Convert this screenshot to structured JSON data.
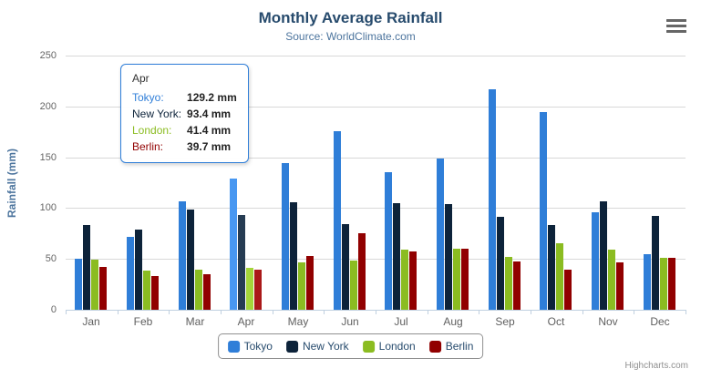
{
  "chart": {
    "title": "Monthly Average Rainfall",
    "subtitle": "Source: WorldClimate.com",
    "credits": "Highcharts.com",
    "menu_icon": "hamburger-icon"
  },
  "chart_data": {
    "type": "bar",
    "title": "Monthly Average Rainfall",
    "subtitle": "Source: WorldClimate.com",
    "xlabel": "",
    "ylabel": "Rainfall (mm)",
    "ylim": [
      0,
      250
    ],
    "ytick_step": 50,
    "grid": true,
    "legend_position": "bottom",
    "categories": [
      "Jan",
      "Feb",
      "Mar",
      "Apr",
      "May",
      "Jun",
      "Jul",
      "Aug",
      "Sep",
      "Oct",
      "Nov",
      "Dec"
    ],
    "series": [
      {
        "name": "Tokyo",
        "color": "#2f7ed8",
        "hover_color": "#4897f1",
        "values": [
          49.9,
          71.5,
          106.4,
          129.2,
          144.0,
          176.0,
          135.6,
          148.5,
          216.4,
          194.1,
          95.6,
          54.4
        ]
      },
      {
        "name": "New York",
        "color": "#0d233a",
        "hover_color": "#263c53",
        "values": [
          83.6,
          78.8,
          98.5,
          93.4,
          106.0,
          84.5,
          105.0,
          104.3,
          91.2,
          83.5,
          106.6,
          92.3
        ]
      },
      {
        "name": "London",
        "color": "#8bbc21",
        "hover_color": "#a4d53a",
        "values": [
          48.9,
          38.8,
          39.3,
          41.4,
          47.0,
          48.3,
          59.0,
          59.6,
          52.4,
          65.2,
          59.3,
          51.2
        ]
      },
      {
        "name": "Berlin",
        "color": "#910000",
        "hover_color": "#aa1919",
        "values": [
          42.4,
          33.2,
          34.5,
          39.7,
          52.6,
          75.5,
          57.4,
          60.4,
          47.6,
          39.1,
          46.8,
          51.1
        ]
      }
    ],
    "hovered_category": "Apr",
    "hovered_category_index": 3
  },
  "tooltip": {
    "header": "Apr",
    "border_color": "#2f7ed8",
    "rows": [
      {
        "label": "Tokyo:",
        "value": "129.2 mm",
        "color": "#2f7ed8"
      },
      {
        "label": "New York:",
        "value": "93.4 mm",
        "color": "#0d233a"
      },
      {
        "label": "London:",
        "value": "41.4 mm",
        "color": "#8bbc21"
      },
      {
        "label": "Berlin:",
        "value": "39.7 mm",
        "color": "#910000"
      }
    ]
  },
  "legend": {
    "items": [
      {
        "label": "Tokyo",
        "color": "#2f7ed8"
      },
      {
        "label": "New York",
        "color": "#0d233a"
      },
      {
        "label": "London",
        "color": "#8bbc21"
      },
      {
        "label": "Berlin",
        "color": "#910000"
      }
    ]
  },
  "colors": {
    "title": "#274b6d",
    "subtitle": "#4d759e",
    "axis_title": "#4d759e",
    "axis_labels": "#666666",
    "gridline": "#d8d8d8",
    "axis_line": "#c0d0e0",
    "legend_border": "#909090",
    "credits": "#909090"
  }
}
